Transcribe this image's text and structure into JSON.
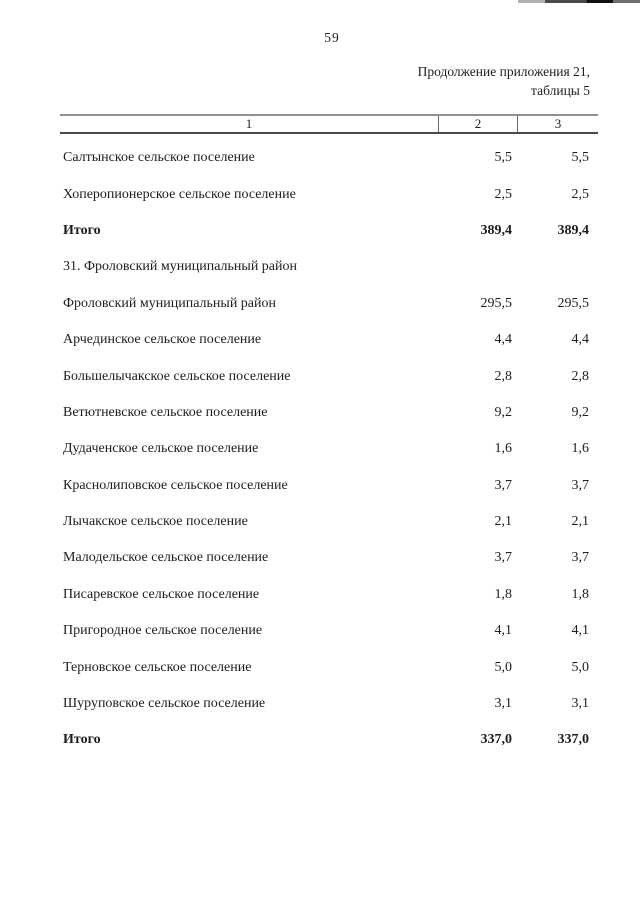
{
  "page": {
    "number": "59",
    "caption_line1": "Продолжение приложения 21,",
    "caption_line2": "таблицы 5"
  },
  "table": {
    "columns": {
      "c1": "1",
      "c2": "2",
      "c3": "3"
    },
    "rows": [
      {
        "name": "Салтынское сельское поселение",
        "col2": "5,5",
        "col3": "5,5",
        "style": "normal"
      },
      {
        "name": "Хоперопионерское сельское поселение",
        "col2": "2,5",
        "col3": "2,5",
        "style": "normal"
      },
      {
        "name": "Итого",
        "col2": "389,4",
        "col3": "389,4",
        "style": "total"
      },
      {
        "name": "31. Фроловский муниципальный район",
        "col2": "",
        "col3": "",
        "style": "section"
      },
      {
        "name": "Фроловский муниципальный район",
        "col2": "295,5",
        "col3": "295,5",
        "style": "normal"
      },
      {
        "name": "Арчединское сельское поселение",
        "col2": "4,4",
        "col3": "4,4",
        "style": "normal"
      },
      {
        "name": "Большелычакское сельское поселение",
        "col2": "2,8",
        "col3": "2,8",
        "style": "normal"
      },
      {
        "name": "Ветютневское сельское поселение",
        "col2": "9,2",
        "col3": "9,2",
        "style": "normal"
      },
      {
        "name": "Дудаченское сельское поселение",
        "col2": "1,6",
        "col3": "1,6",
        "style": "normal"
      },
      {
        "name": "Краснолиповское сельское поселение",
        "col2": "3,7",
        "col3": "3,7",
        "style": "normal"
      },
      {
        "name": "Лычакское сельское поселение",
        "col2": "2,1",
        "col3": "2,1",
        "style": "normal"
      },
      {
        "name": "Малодельское сельское поселение",
        "col2": "3,7",
        "col3": "3,7",
        "style": "normal"
      },
      {
        "name": "Писаревское сельское поселение",
        "col2": "1,8",
        "col3": "1,8",
        "style": "normal"
      },
      {
        "name": "Пригородное сельское поселение",
        "col2": "4,1",
        "col3": "4,1",
        "style": "normal"
      },
      {
        "name": "Терновское сельское поселение",
        "col2": "5,0",
        "col3": "5,0",
        "style": "normal"
      },
      {
        "name": "Шуруповское сельское поселение",
        "col2": "3,1",
        "col3": "3,1",
        "style": "normal"
      },
      {
        "name": "Итого",
        "col2": "337,0",
        "col3": "337,0",
        "style": "total"
      }
    ]
  }
}
